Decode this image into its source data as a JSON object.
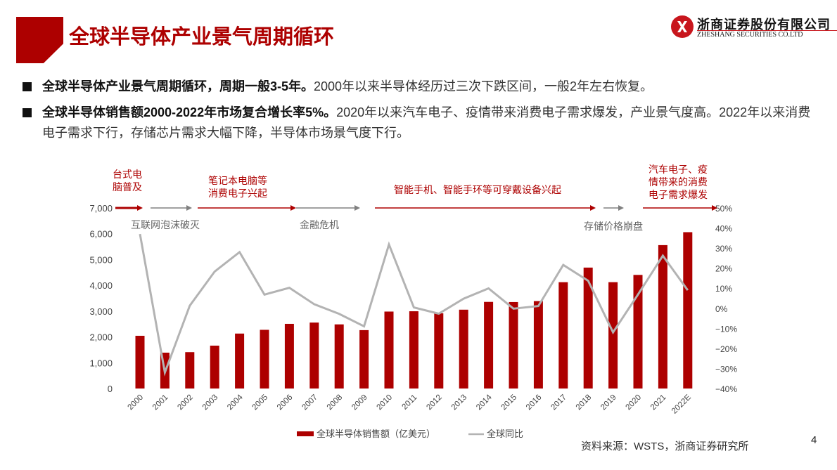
{
  "header": {
    "title": "全球半导体产业景气周期循环",
    "logo_cn": "浙商证券股份有限公司",
    "logo_en": "ZHESHANG SECURITIES CO.LTD"
  },
  "bullets": [
    {
      "bold": "全球半导体产业景气周期循环，周期一般3-5年。",
      "text": "2000年以来半导体经历过三次下跌区间，一般2年左右恢复。"
    },
    {
      "bold": "全球半导体销售额2000-2022年市场复合增长率5%。",
      "text": "2020年以来汽车电子、疫情带来消费电子需求爆发，产业景气度高。2022年以来消费电子需求下行，存储芯片需求大幅下降，半导体市场景气度下行。"
    }
  ],
  "annotations": {
    "up": [
      {
        "label": "台式电\n脑普及",
        "from": "2000",
        "to": "2000.5"
      },
      {
        "label": "笔记本电脑等\n消费电子兴起",
        "from": "2002.8",
        "to": "2007"
      },
      {
        "label": "智能手机、智能手环等可穿戴设备兴起",
        "from": "2010",
        "to": "2017.8"
      },
      {
        "label": "汽车电子、疫\n情带来的消费\n电子需求爆发",
        "from": "2019.6",
        "to": "2022E"
      }
    ],
    "down": [
      {
        "label": "互联网泡沫破灭",
        "from": "2001",
        "to": "2002.5"
      },
      {
        "label": "金融危机",
        "from": "2007",
        "to": "2009.5"
      },
      {
        "label": "存储价格崩盘",
        "from": "2018",
        "to": "2019.3"
      }
    ]
  },
  "chart_data": {
    "type": "bar+line",
    "title": "",
    "categories": [
      "2000",
      "2001",
      "2002",
      "2003",
      "2004",
      "2005",
      "2006",
      "2007",
      "2008",
      "2009",
      "2010",
      "2011",
      "2012",
      "2013",
      "2014",
      "2015",
      "2016",
      "2017",
      "2018",
      "2019",
      "2020",
      "2021",
      "2022E"
    ],
    "series": [
      {
        "name": "全球半导体销售额（亿美元）",
        "type": "bar",
        "axis": "left",
        "color": "#ad0000",
        "values": [
          2044,
          1390,
          1410,
          1662,
          2130,
          2275,
          2507,
          2556,
          2486,
          2263,
          2983,
          2995,
          2916,
          3056,
          3358,
          3352,
          3389,
          4122,
          4688,
          4123,
          4404,
          5559,
          6061
        ]
      },
      {
        "name": "全球同比",
        "type": "line",
        "axis": "right",
        "color": "#b3b3b3",
        "values": [
          37,
          -32,
          1.3,
          18.3,
          28,
          6.8,
          10.2,
          2,
          -2.8,
          -9,
          31.8,
          0.4,
          -2.7,
          4.8,
          9.9,
          -0.2,
          1.1,
          21.6,
          13.7,
          -12,
          6.8,
          26.2,
          9
        ]
      }
    ],
    "left_axis": {
      "min": 0,
      "max": 7000,
      "ticks": [
        "0",
        "1,000",
        "2,000",
        "3,000",
        "4,000",
        "5,000",
        "6,000",
        "7,000"
      ]
    },
    "right_axis": {
      "min": -40,
      "max": 50,
      "ticks": [
        "-40%",
        "-30%",
        "-20%",
        "-10%",
        "0%",
        "10%",
        "20%",
        "30%",
        "40%",
        "50%"
      ]
    },
    "grid": false,
    "legend_position": "bottom"
  },
  "footer": {
    "source": "资料来源：WSTS，浙商证券研究所",
    "page": "4"
  },
  "colors": {
    "brand_red": "#ad0000",
    "line_gray": "#b3b3b3",
    "arrow_gray": "#808080"
  }
}
